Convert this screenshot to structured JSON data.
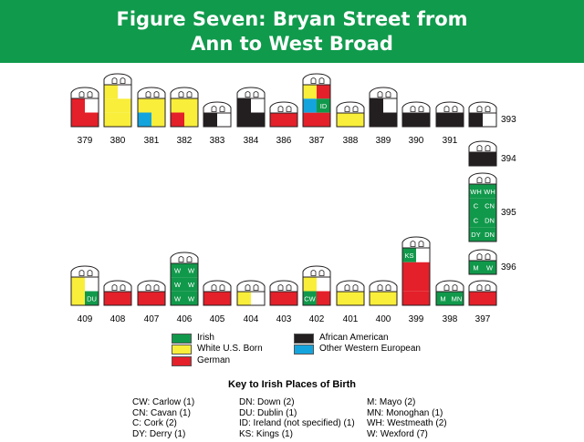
{
  "title": [
    "Figure Seven: Bryan Street from",
    "Ann to West Broad"
  ],
  "colors": {
    "banner": "#109a4c",
    "irish": "#11994b",
    "white_us_born": "#f9ee3a",
    "african_american": "#231f20",
    "german": "#e4202a",
    "other_western_european": "#14a4dd",
    "empty": "#ffffff"
  },
  "houses": [
    {
      "number": "379",
      "height": "short",
      "cells": [
        [
          "german",
          "empty"
        ],
        [
          "german",
          "german"
        ]
      ],
      "labels": []
    },
    {
      "number": "380",
      "height": "tall",
      "cells": [
        [
          "white_us_born",
          "empty"
        ],
        [
          "white_us_born",
          "white_us_born"
        ],
        [
          "white_us_born",
          "white_us_born"
        ]
      ],
      "labels": []
    },
    {
      "number": "381",
      "height": "short",
      "cells": [
        [
          "white_us_born",
          "white_us_born"
        ],
        [
          "other_western_european",
          "white_us_born"
        ]
      ],
      "labels": []
    },
    {
      "number": "382",
      "height": "short",
      "cells": [
        [
          "white_us_born",
          "white_us_born"
        ],
        [
          "german",
          "white_us_born"
        ]
      ],
      "labels": []
    },
    {
      "number": "383",
      "height": "low",
      "cells": [
        [
          "african_american",
          "empty"
        ]
      ],
      "labels": []
    },
    {
      "number": "384",
      "height": "short",
      "cells": [
        [
          "african_american",
          "empty"
        ],
        [
          "african_american",
          "african_american"
        ]
      ],
      "labels": []
    },
    {
      "number": "386",
      "height": "low",
      "cells": [
        [
          "german",
          "german"
        ]
      ],
      "labels": []
    },
    {
      "number": "387",
      "height": "tall",
      "cells": [
        [
          "white_us_born",
          "german"
        ],
        [
          "other_western_european",
          "irish"
        ],
        [
          "german",
          "german"
        ]
      ],
      "labels": [
        {
          "row": 1,
          "col": 1,
          "text": "ID"
        }
      ]
    },
    {
      "number": "388",
      "height": "low",
      "cells": [
        [
          "white_us_born",
          "white_us_born"
        ]
      ],
      "labels": []
    },
    {
      "number": "389",
      "height": "short",
      "cells": [
        [
          "african_american",
          "empty"
        ],
        [
          "african_american",
          "african_american"
        ]
      ],
      "labels": []
    },
    {
      "number": "390",
      "height": "low",
      "cells": [
        [
          "african_american",
          "african_american"
        ]
      ],
      "labels": []
    },
    {
      "number": "391",
      "height": "low",
      "cells": [
        [
          "african_american",
          "african_american"
        ]
      ],
      "labels": []
    },
    {
      "number": "393",
      "height": "low",
      "cells": [
        [
          "african_american",
          "empty"
        ]
      ],
      "labels": []
    },
    {
      "number": "394",
      "height": "low",
      "cells": [
        [
          "african_american",
          "african_american"
        ]
      ],
      "labels": []
    },
    {
      "number": "395",
      "height": "xtall",
      "cells": [
        [
          "irish",
          "irish"
        ],
        [
          "irish",
          "irish"
        ],
        [
          "irish",
          "irish"
        ],
        [
          "irish",
          "irish"
        ]
      ],
      "labels": [
        {
          "row": 0,
          "col": 0,
          "text": "WH"
        },
        {
          "row": 0,
          "col": 1,
          "text": "WH"
        },
        {
          "row": 1,
          "col": 0,
          "text": "C"
        },
        {
          "row": 1,
          "col": 1,
          "text": "CN"
        },
        {
          "row": 2,
          "col": 0,
          "text": "C"
        },
        {
          "row": 2,
          "col": 1,
          "text": "DN"
        },
        {
          "row": 3,
          "col": 0,
          "text": "DY"
        },
        {
          "row": 3,
          "col": 1,
          "text": "DN"
        }
      ]
    },
    {
      "number": "396",
      "height": "low",
      "cells": [
        [
          "irish",
          "irish"
        ]
      ],
      "labels": [
        {
          "row": 0,
          "col": 0,
          "text": "M"
        },
        {
          "row": 0,
          "col": 1,
          "text": "W"
        }
      ]
    },
    {
      "number": "397",
      "height": "low",
      "cells": [
        [
          "german",
          "german"
        ]
      ],
      "labels": []
    },
    {
      "number": "398",
      "height": "low",
      "cells": [
        [
          "irish",
          "irish"
        ]
      ],
      "labels": [
        {
          "row": 0,
          "col": 0,
          "text": "M"
        },
        {
          "row": 0,
          "col": 1,
          "text": "MN"
        }
      ]
    },
    {
      "number": "399",
      "height": "xtall",
      "cells": [
        [
          "irish",
          "empty"
        ],
        [
          "german",
          "german"
        ],
        [
          "german",
          "german"
        ],
        [
          "german",
          "german"
        ]
      ],
      "labels": [
        {
          "row": 0,
          "col": 0,
          "text": "KS"
        }
      ]
    },
    {
      "number": "400",
      "height": "low",
      "cells": [
        [
          "white_us_born",
          "white_us_born"
        ]
      ],
      "labels": []
    },
    {
      "number": "401",
      "height": "low",
      "cells": [
        [
          "white_us_born",
          "white_us_born"
        ]
      ],
      "labels": []
    },
    {
      "number": "402",
      "height": "short",
      "cells": [
        [
          "white_us_born",
          "empty"
        ],
        [
          "irish",
          "german"
        ]
      ],
      "labels": [
        {
          "row": 1,
          "col": 0,
          "text": "CW"
        }
      ]
    },
    {
      "number": "403",
      "height": "low",
      "cells": [
        [
          "german",
          "german"
        ]
      ],
      "labels": []
    },
    {
      "number": "404",
      "height": "low",
      "cells": [
        [
          "white_us_born",
          "empty"
        ]
      ],
      "labels": []
    },
    {
      "number": "405",
      "height": "low",
      "cells": [
        [
          "german",
          "german"
        ]
      ],
      "labels": []
    },
    {
      "number": "406",
      "height": "tall",
      "cells": [
        [
          "irish",
          "irish"
        ],
        [
          "irish",
          "irish"
        ],
        [
          "irish",
          "irish"
        ]
      ],
      "labels": [
        {
          "row": 0,
          "col": 0,
          "text": "W"
        },
        {
          "row": 0,
          "col": 1,
          "text": "W"
        },
        {
          "row": 1,
          "col": 0,
          "text": "W"
        },
        {
          "row": 1,
          "col": 1,
          "text": "W"
        },
        {
          "row": 2,
          "col": 0,
          "text": "W"
        },
        {
          "row": 2,
          "col": 1,
          "text": "W"
        }
      ]
    },
    {
      "number": "407",
      "height": "low",
      "cells": [
        [
          "german",
          "german"
        ]
      ],
      "labels": []
    },
    {
      "number": "408",
      "height": "low",
      "cells": [
        [
          "german",
          "german"
        ]
      ],
      "labels": []
    },
    {
      "number": "409",
      "height": "short",
      "cells": [
        [
          "white_us_born",
          "empty"
        ],
        [
          "white_us_born",
          "irish"
        ]
      ],
      "labels": [
        {
          "row": 1,
          "col": 1,
          "text": "DU"
        }
      ]
    }
  ],
  "legend": [
    {
      "key": "irish",
      "label": "Irish"
    },
    {
      "key": "white_us_born",
      "label": "White U.S. Born"
    },
    {
      "key": "german",
      "label": "German"
    },
    {
      "key": "african_american",
      "label": "African American"
    },
    {
      "key": "other_western_european",
      "label": "Other Western European"
    }
  ],
  "key_title": "Key to Irish Places of Birth",
  "key_columns": [
    [
      "CW: Carlow (1)",
      "CN: Cavan (1)",
      "C: Cork (2)",
      "DY: Derry (1)"
    ],
    [
      "DN: Down (2)",
      "DU: Dublin (1)",
      "ID: Ireland (not specified) (1)",
      "KS: Kings (1)"
    ],
    [
      "M: Mayo (2)",
      "MN: Monoghan (1)",
      "WH: Westmeath (2)",
      "W: Wexford (7)"
    ]
  ]
}
